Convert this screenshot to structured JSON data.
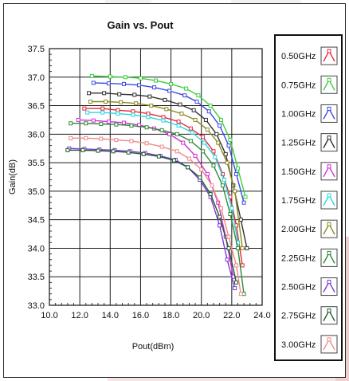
{
  "chart_data": {
    "type": "line",
    "title": "Gain vs. Pout",
    "xlabel": "Pout(dBm)",
    "ylabel": "Gain(dB)",
    "xlim": [
      10.0,
      24.0
    ],
    "ylim": [
      33.0,
      37.5
    ],
    "xticks": [
      "10.0",
      "12.0",
      "14.0",
      "16.0",
      "18.0",
      "20.0",
      "22.0",
      "24.0"
    ],
    "yticks": [
      "33.0",
      "33.5",
      "34.0",
      "34.5",
      "35.0",
      "35.5",
      "36.0",
      "36.5",
      "37.0",
      "37.5"
    ],
    "grid": true,
    "legend_position": "right",
    "series": [
      {
        "name": "0.50GHz",
        "color": "#e8283a",
        "x": [
          12.3,
          13.5,
          14.5,
          15.5,
          16.5,
          17.5,
          18.5,
          19.3,
          20.1,
          20.8,
          21.4,
          21.9,
          22.3,
          22.7
        ],
        "y": [
          36.45,
          36.45,
          36.42,
          36.4,
          36.36,
          36.3,
          36.22,
          36.1,
          35.95,
          35.7,
          35.3,
          34.9,
          34.4,
          33.7
        ]
      },
      {
        "name": "0.75GHz",
        "color": "#3ccf3c",
        "x": [
          12.8,
          14.0,
          15.0,
          16.0,
          17.0,
          18.0,
          19.0,
          19.8,
          20.6,
          21.3,
          21.9,
          22.4,
          22.9
        ],
        "y": [
          37.02,
          37.01,
          37.0,
          36.98,
          36.94,
          36.88,
          36.8,
          36.68,
          36.5,
          36.25,
          35.9,
          35.4,
          34.9
        ]
      },
      {
        "name": "1.00GHz",
        "color": "#3a4be0",
        "x": [
          12.9,
          13.9,
          14.9,
          15.9,
          16.9,
          17.9,
          18.9,
          19.7,
          20.5,
          21.2,
          21.8,
          22.3,
          22.8
        ],
        "y": [
          36.9,
          36.89,
          36.88,
          36.86,
          36.82,
          36.76,
          36.68,
          36.57,
          36.4,
          36.15,
          35.8,
          35.3,
          34.8
        ]
      },
      {
        "name": "1.25GHz",
        "color": "#333333",
        "x": [
          12.6,
          13.6,
          14.6,
          15.6,
          16.6,
          17.6,
          18.6,
          19.5,
          20.3,
          21.0,
          21.6,
          22.1,
          22.6,
          23.0
        ],
        "y": [
          36.72,
          36.72,
          36.7,
          36.69,
          36.66,
          36.6,
          36.52,
          36.42,
          36.25,
          36.0,
          35.65,
          35.1,
          34.5,
          34.0
        ]
      },
      {
        "name": "1.50GHz",
        "color": "#d030d8",
        "x": [
          11.9,
          12.9,
          13.9,
          14.9,
          15.9,
          16.9,
          17.9,
          18.8,
          19.6,
          20.4,
          21.1,
          21.6,
          22.1
        ],
        "y": [
          36.25,
          36.24,
          36.22,
          36.2,
          36.16,
          36.1,
          36.0,
          35.85,
          35.62,
          35.3,
          34.8,
          34.2,
          33.5
        ]
      },
      {
        "name": "1.75GHz",
        "color": "#29d8e0",
        "x": [
          12.5,
          13.5,
          14.5,
          15.5,
          16.5,
          17.5,
          18.5,
          19.4,
          20.2,
          20.9,
          21.5,
          22.0,
          22.4
        ],
        "y": [
          36.38,
          36.38,
          36.36,
          36.34,
          36.3,
          36.24,
          36.15,
          36.03,
          35.85,
          35.6,
          35.2,
          34.7,
          34.1
        ]
      },
      {
        "name": "2.00GHz",
        "color": "#8a8a1e",
        "x": [
          12.7,
          13.7,
          14.7,
          15.7,
          16.7,
          17.7,
          18.7,
          19.6,
          20.4,
          21.1,
          21.7,
          22.2,
          22.7
        ],
        "y": [
          36.57,
          36.57,
          36.56,
          36.54,
          36.5,
          36.44,
          36.36,
          36.25,
          36.08,
          35.85,
          35.5,
          35.0,
          34.0
        ]
      },
      {
        "name": "2.25GHz",
        "color": "#2e8b3a",
        "x": [
          11.4,
          12.4,
          13.4,
          14.4,
          15.4,
          16.4,
          17.4,
          18.4,
          19.3,
          20.1,
          20.8,
          21.4,
          21.9,
          22.4,
          22.8
        ],
        "y": [
          36.19,
          36.19,
          36.18,
          36.17,
          36.15,
          36.12,
          36.07,
          36.0,
          35.88,
          35.7,
          35.45,
          35.1,
          34.6,
          34.0,
          33.2
        ]
      },
      {
        "name": "2.50GHz",
        "color": "#7a3ad8",
        "x": [
          11.3,
          12.3,
          13.3,
          14.3,
          15.3,
          16.3,
          17.3,
          18.3,
          19.1,
          19.9,
          20.6,
          21.2,
          21.7,
          22.2
        ],
        "y": [
          35.75,
          35.74,
          35.73,
          35.72,
          35.7,
          35.67,
          35.62,
          35.55,
          35.42,
          35.2,
          34.9,
          34.4,
          33.8,
          33.3
        ]
      },
      {
        "name": "2.75GHz",
        "color": "#1f5a2a",
        "x": [
          11.2,
          12.2,
          13.2,
          14.2,
          15.2,
          16.2,
          17.2,
          18.2,
          19.1,
          19.9,
          20.6,
          21.2,
          21.8,
          22.3
        ],
        "y": [
          35.72,
          35.72,
          35.71,
          35.7,
          35.68,
          35.65,
          35.61,
          35.54,
          35.42,
          35.24,
          34.95,
          34.55,
          34.0,
          33.4
        ]
      },
      {
        "name": "3.00GHz",
        "color": "#f08a8a",
        "x": [
          11.4,
          12.4,
          13.4,
          14.4,
          15.4,
          16.4,
          17.4,
          18.4,
          19.2,
          20.0,
          20.7,
          21.3,
          21.8,
          22.3,
          22.6
        ],
        "y": [
          35.93,
          35.93,
          35.92,
          35.9,
          35.88,
          35.84,
          35.78,
          35.7,
          35.57,
          35.38,
          35.1,
          34.7,
          34.2,
          33.7,
          33.2
        ]
      }
    ]
  }
}
